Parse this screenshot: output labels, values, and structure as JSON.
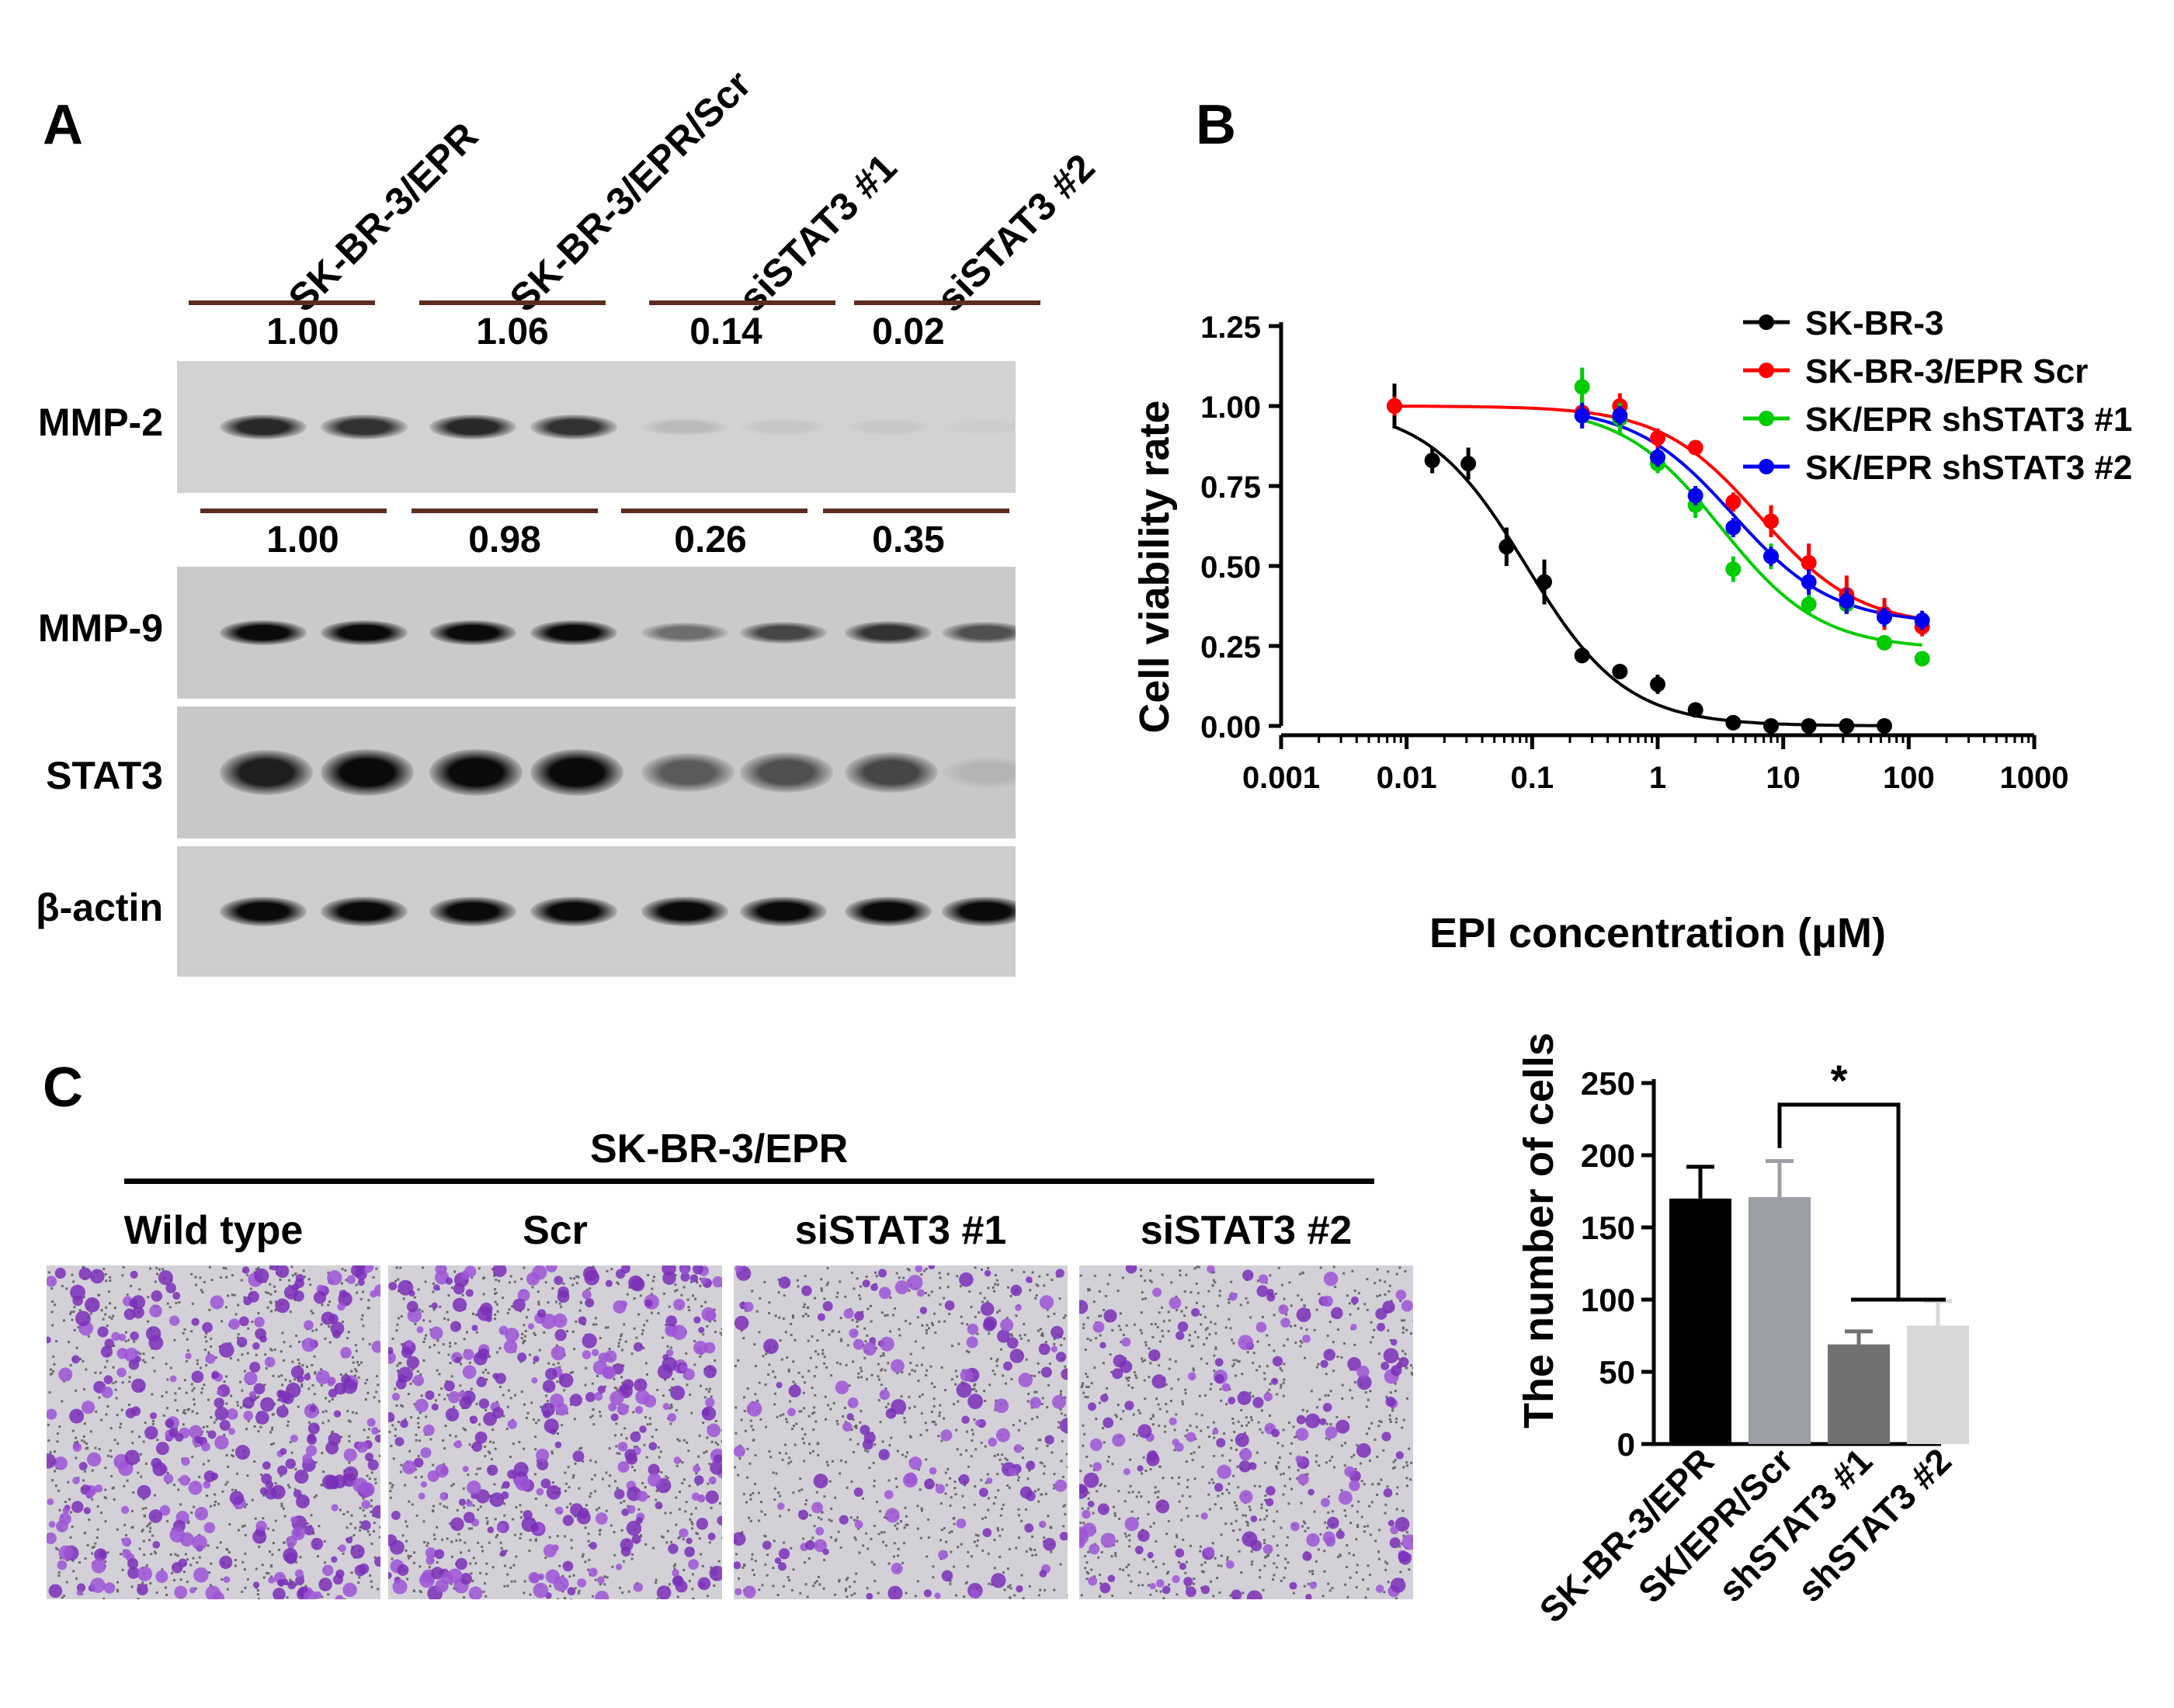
{
  "panel_a": {
    "letter": "A",
    "lanes": [
      "SK-BR-3/EPR",
      "SK-BR-3/EPR/Scr",
      "siSTAT3 #1",
      "siSTAT3 #2"
    ],
    "mmp2_quant": [
      "1.00",
      "1.06",
      "0.14",
      "0.02"
    ],
    "mmp9_quant": [
      "1.00",
      "0.98",
      "0.26",
      "0.35"
    ],
    "rows": [
      "MMP-2",
      "MMP-9",
      "STAT3",
      "β-actin"
    ],
    "band_intensity": {
      "MMP-2": [
        0.85,
        0.8,
        0.85,
        0.8,
        0.12,
        0.06,
        0.05,
        0.03
      ],
      "MMP-9": [
        1.0,
        1.0,
        1.0,
        1.0,
        0.5,
        0.7,
        0.8,
        0.65
      ],
      "STAT3": [
        0.9,
        1.0,
        1.0,
        1.0,
        0.6,
        0.65,
        0.7,
        0.15
      ],
      "β-actin": [
        1.0,
        1.0,
        1.0,
        1.0,
        1.0,
        1.0,
        1.0,
        1.0
      ]
    }
  },
  "panel_b": {
    "letter": "B",
    "chart_data": {
      "type": "line",
      "xlabel": "EPI concentration (μM)",
      "ylabel": "Cell viability rate",
      "x_scale": "log",
      "xlim": [
        0.001,
        1000
      ],
      "ylim": [
        0,
        1.25
      ],
      "xticks": [
        "0.001",
        "0.01",
        "0.1",
        "1",
        "10",
        "100",
        "1000"
      ],
      "yticks": [
        "0.00",
        "0.25",
        "0.50",
        "0.75",
        "1.00",
        "1.25"
      ],
      "legend_position": "top-right",
      "series": [
        {
          "name": "SK-BR-3",
          "color": "#000000",
          "x": [
            0.008,
            0.016,
            0.031,
            0.0625,
            0.125,
            0.25,
            0.5,
            1,
            2,
            4,
            8,
            16,
            32,
            64
          ],
          "y": [
            1.0,
            0.83,
            0.82,
            0.56,
            0.45,
            0.22,
            0.17,
            0.13,
            0.05,
            0.01,
            0.0,
            0.0,
            0.0,
            0.0
          ],
          "err": [
            0.07,
            0.04,
            0.05,
            0.06,
            0.07,
            0.02,
            0.01,
            0.03,
            0.01,
            0.01,
            0.0,
            0.0,
            0.0,
            0.0
          ],
          "ic50": 0.09,
          "bottom": 0.0
        },
        {
          "name": "SK-BR-3/EPR Scr",
          "color": "#ff0000",
          "x": [
            0.008,
            0.25,
            0.5,
            1,
            2,
            4,
            8,
            16,
            32,
            64,
            128
          ],
          "y": [
            1.0,
            0.98,
            1.0,
            0.9,
            0.87,
            0.7,
            0.64,
            0.51,
            0.41,
            0.35,
            0.31
          ],
          "err": [
            0.03,
            0.05,
            0.04,
            0.03,
            0.02,
            0.03,
            0.05,
            0.06,
            0.06,
            0.05,
            0.03
          ],
          "ic50": 6.5,
          "bottom": 0.31
        },
        {
          "name": "SK/EPR shSTAT3 #1",
          "color": "#00cc00",
          "x": [
            0.25,
            0.5,
            1,
            2,
            4,
            8,
            16,
            32,
            64,
            128
          ],
          "y": [
            1.06,
            0.96,
            0.82,
            0.69,
            0.49,
            0.53,
            0.38,
            0.38,
            0.26,
            0.21
          ],
          "err": [
            0.06,
            0.05,
            0.03,
            0.04,
            0.04,
            0.04,
            0.03,
            0.03,
            0.02,
            0.02
          ],
          "ic50": 3.2,
          "bottom": 0.24
        },
        {
          "name": "SK/EPR shSTAT3 #2",
          "color": "#0000ee",
          "x": [
            0.25,
            0.5,
            1,
            2,
            4,
            8,
            16,
            32,
            64,
            128
          ],
          "y": [
            0.97,
            0.97,
            0.84,
            0.72,
            0.62,
            0.53,
            0.45,
            0.39,
            0.34,
            0.33
          ],
          "err": [
            0.04,
            0.03,
            0.03,
            0.03,
            0.03,
            0.03,
            0.04,
            0.04,
            0.03,
            0.03
          ],
          "ic50": 4.0,
          "bottom": 0.32
        }
      ]
    }
  },
  "panel_c": {
    "letter": "C",
    "group_label": "SK-BR-3/EPR",
    "conditions": [
      "Wild type",
      "Scr",
      "siSTAT3 #1",
      "siSTAT3 #2"
    ],
    "cell_density": [
      1.0,
      1.0,
      0.45,
      0.55
    ],
    "chart_data": {
      "type": "bar",
      "ylabel": "The number of cells",
      "ylim": [
        0,
        250
      ],
      "yticks": [
        "0",
        "50",
        "100",
        "150",
        "200",
        "250"
      ],
      "categories": [
        "SK-BR-3/EPR",
        "SK/EPR/Scr",
        "shSTAT3 #1",
        "shSTAT3 #2"
      ],
      "values": [
        170,
        171,
        69,
        82
      ],
      "errors": [
        22,
        25,
        9,
        17
      ],
      "colors": [
        "#000000",
        "#9d9fa6",
        "#707070",
        "#d8d8d8"
      ],
      "significance": "*"
    }
  }
}
